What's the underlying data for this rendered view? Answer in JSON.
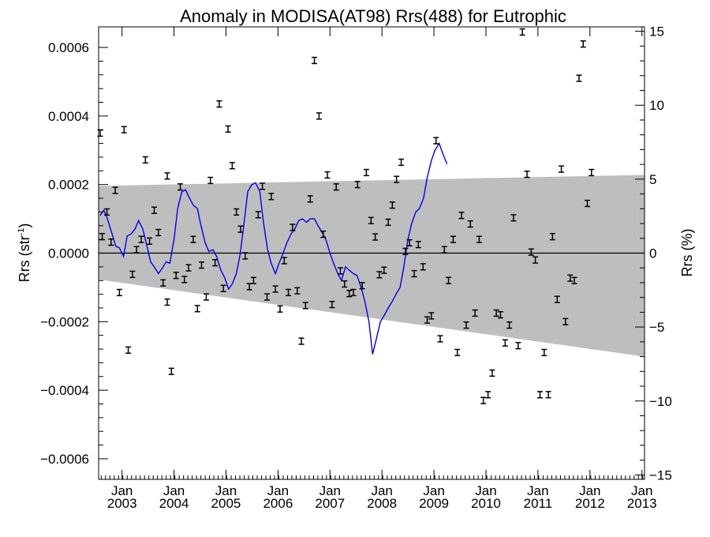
{
  "chart_data": {
    "type": "line",
    "title": "Anomaly in MODISA(AT98) Rrs(488) for Eutrophic",
    "ylabel": "Rrs (str",
    "ylabel_sup": "-1",
    "ylabel_close": ")",
    "ylabel_right": "Rrs (%)",
    "xlim": [
      2002.55,
      2013.05
    ],
    "ylim": [
      -0.00066,
      0.00066
    ],
    "ylim_right": [
      -15.3,
      15.3
    ],
    "grid": false,
    "x_ticks": [
      {
        "x": 2003.0,
        "month": "Jan",
        "year": "2003"
      },
      {
        "x": 2004.0,
        "month": "Jan",
        "year": "2004"
      },
      {
        "x": 2005.0,
        "month": "Jan",
        "year": "2005"
      },
      {
        "x": 2006.0,
        "month": "Jan",
        "year": "2006"
      },
      {
        "x": 2007.0,
        "month": "Jan",
        "year": "2007"
      },
      {
        "x": 2008.0,
        "month": "Jan",
        "year": "2008"
      },
      {
        "x": 2009.0,
        "month": "Jan",
        "year": "2009"
      },
      {
        "x": 2010.0,
        "month": "Jan",
        "year": "2010"
      },
      {
        "x": 2011.0,
        "month": "Jan",
        "year": "2011"
      },
      {
        "x": 2012.0,
        "month": "Jan",
        "year": "2012"
      },
      {
        "x": 2013.0,
        "month": "Jan",
        "year": "2013"
      }
    ],
    "y_ticks": [
      {
        "v": 0.0006,
        "label": "0.0006"
      },
      {
        "v": 0.0004,
        "label": "0.0004"
      },
      {
        "v": 0.0002,
        "label": "0.0002"
      },
      {
        "v": 0.0,
        "label": "0.0000"
      },
      {
        "v": -0.0002,
        "label": "−0.0002"
      },
      {
        "v": -0.0004,
        "label": "−0.0004"
      },
      {
        "v": -0.0006,
        "label": "−0.0006"
      }
    ],
    "y_right_ticks": [
      {
        "v": 15,
        "label": "15"
      },
      {
        "v": 10,
        "label": "10"
      },
      {
        "v": 5,
        "label": "5"
      },
      {
        "v": 0,
        "label": "0"
      },
      {
        "v": -5,
        "label": "−5"
      },
      {
        "v": -10,
        "label": "−10"
      },
      {
        "v": -15,
        "label": "−15"
      }
    ],
    "band": {
      "upper": [
        [
          2002.55,
          0.000196
        ],
        [
          2013.05,
          0.000228
        ]
      ],
      "lower": [
        [
          2002.55,
          -7.7e-05
        ],
        [
          2013.05,
          -0.000302
        ]
      ],
      "color": "#bebebe"
    },
    "zero_line": 0.0,
    "series": [
      {
        "kind": "errorbar",
        "color": "#000000",
        "half_width": 9e-06,
        "points": [
          [
            2002.58,
            0.00035
          ],
          [
            2002.62,
            4.8e-05
          ],
          [
            2002.71,
            0.00012
          ],
          [
            2002.79,
            3.2e-05
          ],
          [
            2002.87,
            0.000183
          ],
          [
            2002.95,
            -0.000115
          ],
          [
            2003.04,
            0.00036
          ],
          [
            2003.12,
            -0.000283
          ],
          [
            2003.2,
            -6.2e-05
          ],
          [
            2003.28,
            1e-05
          ],
          [
            2003.37,
            4e-05
          ],
          [
            2003.45,
            0.000272
          ],
          [
            2003.53,
            3.5e-05
          ],
          [
            2003.62,
            0.000125
          ],
          [
            2003.7,
            6e-05
          ],
          [
            2003.79,
            -8.7e-05
          ],
          [
            2003.87,
            0.000225
          ],
          [
            2003.87,
            -0.000143
          ],
          [
            2003.95,
            -0.000345
          ],
          [
            2004.04,
            -6.5e-05
          ],
          [
            2004.12,
            0.000193
          ],
          [
            2004.2,
            -7.7e-05
          ],
          [
            2004.28,
            -4.3e-05
          ],
          [
            2004.37,
            4e-05
          ],
          [
            2004.45,
            -0.000162
          ],
          [
            2004.53,
            -3.5e-05
          ],
          [
            2004.62,
            -0.000128
          ],
          [
            2004.7,
            0.000212
          ],
          [
            2004.79,
            -2.8e-05
          ],
          [
            2004.87,
            0.000435
          ],
          [
            2004.95,
            -0.000103
          ],
          [
            2005.04,
            0.000362
          ],
          [
            2005.12,
            0.000255
          ],
          [
            2005.2,
            0.00012
          ],
          [
            2005.28,
            7e-05
          ],
          [
            2005.37,
            -8e-06
          ],
          [
            2005.45,
            -9.8e-05
          ],
          [
            2005.53,
            -8e-05
          ],
          [
            2005.62,
            0.000112
          ],
          [
            2005.7,
            0.000195
          ],
          [
            2005.79,
            -0.000128
          ],
          [
            2005.87,
            0.000165
          ],
          [
            2005.95,
            -0.000105
          ],
          [
            2006.04,
            -0.000163
          ],
          [
            2006.12,
            -2.2e-05
          ],
          [
            2006.2,
            -0.000115
          ],
          [
            2006.28,
            7.5e-05
          ],
          [
            2006.37,
            -0.00011
          ],
          [
            2006.45,
            -0.000257
          ],
          [
            2006.53,
            -0.000153
          ],
          [
            2006.62,
            0.000158
          ],
          [
            2006.7,
            0.000562
          ],
          [
            2006.79,
            0.0004
          ],
          [
            2006.87,
            5.5e-05
          ],
          [
            2006.95,
            0.000228
          ],
          [
            2007.04,
            -0.00015
          ],
          [
            2007.12,
            0.000193
          ],
          [
            2007.2,
            -5.2e-05
          ],
          [
            2007.28,
            -9e-05
          ],
          [
            2007.37,
            -0.000118
          ],
          [
            2007.45,
            -0.000115
          ],
          [
            2007.53,
            0.0002
          ],
          [
            2007.62,
            -9.5e-05
          ],
          [
            2007.7,
            0.000235
          ],
          [
            2007.79,
            9.5e-05
          ],
          [
            2007.87,
            4.7e-05
          ],
          [
            2007.95,
            -6.3e-05
          ],
          [
            2008.04,
            -5e-05
          ],
          [
            2008.12,
            9e-05
          ],
          [
            2008.2,
            0.00014
          ],
          [
            2008.28,
            0.000215
          ],
          [
            2008.37,
            0.000265
          ],
          [
            2008.45,
            5e-06
          ],
          [
            2008.53,
            3e-05
          ],
          [
            2008.62,
            -6e-05
          ],
          [
            2008.7,
            2.5e-05
          ],
          [
            2008.79,
            -4e-05
          ],
          [
            2008.87,
            -0.000195
          ],
          [
            2008.95,
            -0.000183
          ],
          [
            2009.04,
            0.000328
          ],
          [
            2009.12,
            -0.00025
          ],
          [
            2009.2,
            1e-05
          ],
          [
            2009.28,
            -8e-05
          ],
          [
            2009.37,
            4e-05
          ],
          [
            2009.45,
            -0.00029
          ],
          [
            2009.53,
            0.00011
          ],
          [
            2009.62,
            -0.00021
          ],
          [
            2009.7,
            8.5e-05
          ],
          [
            2009.79,
            -0.000175
          ],
          [
            2009.87,
            4e-05
          ],
          [
            2009.95,
            -0.00043
          ],
          [
            2010.04,
            -0.000413
          ],
          [
            2010.12,
            -0.00035
          ],
          [
            2010.2,
            -0.000175
          ],
          [
            2010.28,
            -0.00018
          ],
          [
            2010.37,
            -0.000262
          ],
          [
            2010.45,
            -0.00021
          ],
          [
            2010.53,
            0.000103
          ],
          [
            2010.62,
            -0.00027
          ],
          [
            2010.7,
            0.000645
          ],
          [
            2010.79,
            0.00023
          ],
          [
            2010.87,
            3e-06
          ],
          [
            2010.95,
            -2e-05
          ],
          [
            2011.04,
            -0.000413
          ],
          [
            2011.12,
            -0.00029
          ],
          [
            2011.2,
            -0.000413
          ],
          [
            2011.28,
            4.8e-05
          ],
          [
            2011.37,
            -0.000135
          ],
          [
            2011.45,
            0.000245
          ],
          [
            2011.53,
            -0.0002
          ],
          [
            2011.62,
            -7.3e-05
          ],
          [
            2011.7,
            -8e-05
          ],
          [
            2011.79,
            0.00051
          ],
          [
            2011.87,
            0.00061
          ],
          [
            2011.95,
            0.000145
          ],
          [
            2012.03,
            0.000235
          ]
        ]
      },
      {
        "kind": "line",
        "color": "#0000ee",
        "points": [
          [
            2002.58,
            0.00011
          ],
          [
            2002.65,
            0.000125
          ],
          [
            2002.72,
            0.0001
          ],
          [
            2002.8,
            6e-05
          ],
          [
            2002.88,
            2e-05
          ],
          [
            2002.95,
            1.5e-05
          ],
          [
            2003.03,
            -1e-05
          ],
          [
            2003.1,
            5e-05
          ],
          [
            2003.17,
            5.5e-05
          ],
          [
            2003.25,
            7e-05
          ],
          [
            2003.32,
            9.5e-05
          ],
          [
            2003.4,
            7e-05
          ],
          [
            2003.48,
            2e-05
          ],
          [
            2003.55,
            -2.5e-05
          ],
          [
            2003.62,
            -4e-05
          ],
          [
            2003.7,
            -6e-05
          ],
          [
            2003.77,
            -4.5e-05
          ],
          [
            2003.85,
            -2.5e-05
          ],
          [
            2003.92,
            -3e-05
          ],
          [
            2004.0,
            4e-05
          ],
          [
            2004.07,
            0.00013
          ],
          [
            2004.15,
            0.000178
          ],
          [
            2004.22,
            0.000185
          ],
          [
            2004.3,
            0.00016
          ],
          [
            2004.37,
            0.00014
          ],
          [
            2004.45,
            0.00013
          ],
          [
            2004.52,
            8e-05
          ],
          [
            2004.6,
            3e-05
          ],
          [
            2004.67,
            5e-06
          ],
          [
            2004.75,
            1e-05
          ],
          [
            2004.82,
            -1e-05
          ],
          [
            2004.9,
            -5e-05
          ],
          [
            2004.97,
            -7e-05
          ],
          [
            2005.05,
            -0.000105
          ],
          [
            2005.12,
            -9e-05
          ],
          [
            2005.2,
            -6e-05
          ],
          [
            2005.27,
            -5e-06
          ],
          [
            2005.35,
            9e-05
          ],
          [
            2005.42,
            0.00018
          ],
          [
            2005.5,
            0.0002
          ],
          [
            2005.57,
            0.000205
          ],
          [
            2005.65,
            0.00018
          ],
          [
            2005.72,
            9e-05
          ],
          [
            2005.8,
            1e-05
          ],
          [
            2005.87,
            -3e-05
          ],
          [
            2005.95,
            -6e-05
          ],
          [
            2006.02,
            -3e-05
          ],
          [
            2006.1,
            0.0
          ],
          [
            2006.17,
            3e-05
          ],
          [
            2006.25,
            5.5e-05
          ],
          [
            2006.32,
            7e-05
          ],
          [
            2006.4,
            9.5e-05
          ],
          [
            2006.47,
            0.0001
          ],
          [
            2006.55,
            9e-05
          ],
          [
            2006.62,
            0.0001
          ],
          [
            2006.7,
            0.0001
          ],
          [
            2006.77,
            8e-05
          ],
          [
            2006.85,
            6e-05
          ],
          [
            2006.92,
            4e-05
          ],
          [
            2007.0,
            0.0
          ],
          [
            2007.07,
            -3e-05
          ],
          [
            2007.15,
            -6e-05
          ],
          [
            2007.22,
            -8e-05
          ],
          [
            2007.3,
            -4e-05
          ],
          [
            2007.37,
            -5e-05
          ],
          [
            2007.45,
            -6e-05
          ],
          [
            2007.52,
            -6.5e-05
          ],
          [
            2007.6,
            -0.0001
          ],
          [
            2007.67,
            -0.00014
          ],
          [
            2007.75,
            -0.0002
          ],
          [
            2007.82,
            -0.000295
          ],
          [
            2007.9,
            -0.000245
          ],
          [
            2007.97,
            -0.0002
          ],
          [
            2008.05,
            -0.00018
          ],
          [
            2008.12,
            -0.00016
          ],
          [
            2008.2,
            -0.00014
          ],
          [
            2008.27,
            -0.00012
          ],
          [
            2008.35,
            -0.0001
          ],
          [
            2008.42,
            -4e-05
          ],
          [
            2008.5,
            4e-05
          ],
          [
            2008.57,
            8.5e-05
          ],
          [
            2008.65,
            0.00012
          ],
          [
            2008.72,
            0.00013
          ],
          [
            2008.8,
            0.00016
          ],
          [
            2008.87,
            0.00022
          ],
          [
            2008.95,
            0.00027
          ],
          [
            2009.02,
            0.0003
          ],
          [
            2009.1,
            0.00032
          ],
          [
            2009.17,
            0.00029
          ],
          [
            2009.25,
            0.00026
          ]
        ]
      }
    ]
  }
}
